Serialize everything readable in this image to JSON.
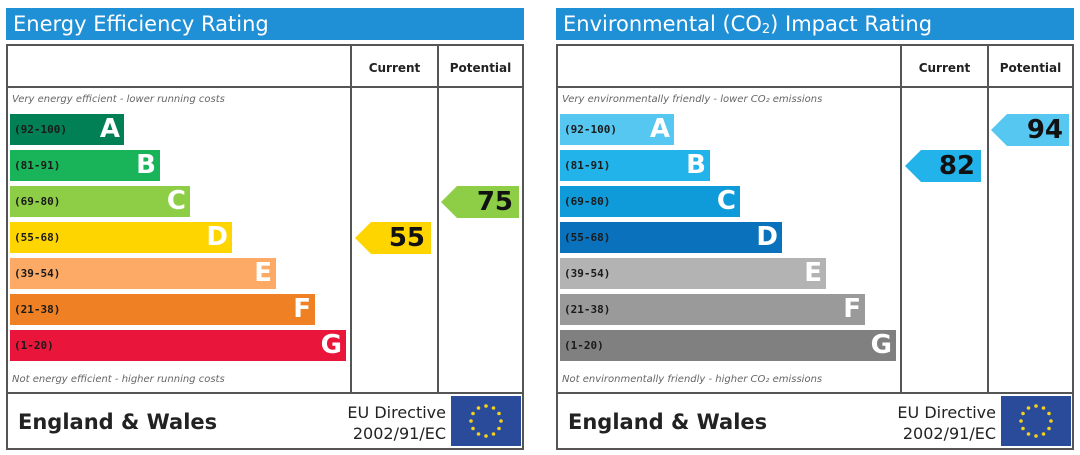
{
  "chart_data": [
    {
      "type": "bar",
      "title": "Energy Efficiency Rating",
      "column_headers": [
        "Current",
        "Potential"
      ],
      "top_label": "Very energy efficient - lower running costs",
      "bottom_label": "Not energy efficient - higher running costs",
      "categories": [
        "A",
        "B",
        "C",
        "D",
        "E",
        "F",
        "G"
      ],
      "ranges": [
        "(92-100)",
        "(81-91)",
        "(69-80)",
        "(55-68)",
        "(39-54)",
        "(21-38)",
        "(1-20)"
      ],
      "band_colors": [
        "#008054",
        "#19b459",
        "#8dce46",
        "#ffd500",
        "#fcaa65",
        "#ef8023",
        "#e9153b"
      ],
      "current": 55,
      "potential": 75,
      "current_band": "D",
      "potential_band": "C",
      "current_color": "#ffd500",
      "potential_color": "#8dce46",
      "region": "England & Wales",
      "directive_line1": "EU Directive",
      "directive_line2": "2002/91/EC"
    },
    {
      "type": "bar",
      "title": "Environmental (CO",
      "title_sub": "2",
      "title_end": ") Impact Rating",
      "column_headers": [
        "Current",
        "Potential"
      ],
      "top_label": "Very environmentally friendly - lower CO₂ emissions",
      "bottom_label": "Not environmentally friendly - higher CO₂ emissions",
      "categories": [
        "A",
        "B",
        "C",
        "D",
        "E",
        "F",
        "G"
      ],
      "ranges": [
        "(92-100)",
        "(81-91)",
        "(69-80)",
        "(55-68)",
        "(39-54)",
        "(21-38)",
        "(1-20)"
      ],
      "band_colors": [
        "#55c7f1",
        "#21b3ea",
        "#0f9bd9",
        "#0a72bd",
        "#b3b3b3",
        "#9a9a9a",
        "#808080"
      ],
      "current": 82,
      "potential": 94,
      "current_band": "B",
      "potential_band": "A",
      "current_color": "#21b3ea",
      "potential_color": "#55c7f1",
      "region": "England & Wales",
      "directive_line1": "EU Directive",
      "directive_line2": "2002/91/EC"
    }
  ]
}
